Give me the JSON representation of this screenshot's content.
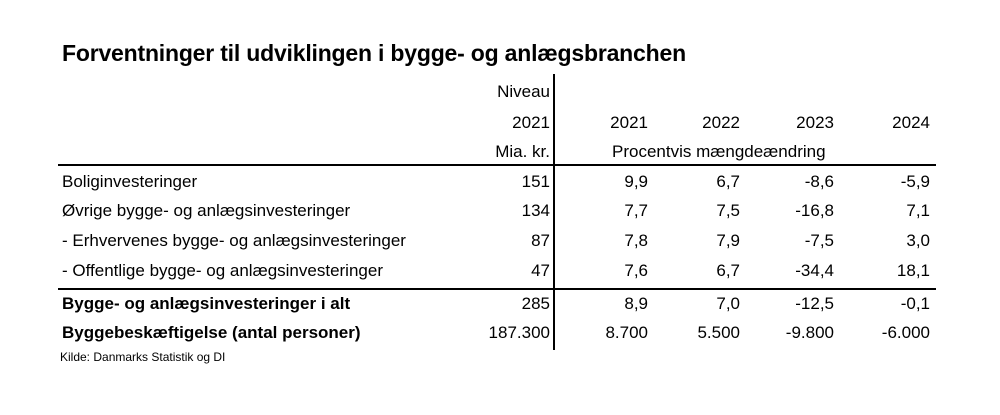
{
  "title": "Forventninger til udviklingen i bygge- og anlægsbranchen",
  "header": {
    "level_line1": "Niveau",
    "level_year": "2021",
    "level_unit": "Mia. kr.",
    "years": [
      "2021",
      "2022",
      "2023",
      "2024"
    ],
    "pct_caption": "Procentvis mængdeændring"
  },
  "rows": [
    {
      "label": "Boliginvesteringer",
      "level": "151",
      "v2021": "9,9",
      "v2022": "6,7",
      "v2023": "-8,6",
      "v2024": "-5,9"
    },
    {
      "label": "Øvrige bygge- og anlægsinvesteringer",
      "level": "134",
      "v2021": "7,7",
      "v2022": "7,5",
      "v2023": "-16,8",
      "v2024": "7,1"
    },
    {
      "label": " - Erhvervenes bygge- og anlægsinvesteringer",
      "level": "87",
      "v2021": "7,8",
      "v2022": "7,9",
      "v2023": "-7,5",
      "v2024": "3,0"
    },
    {
      "label": " - Offentlige bygge- og anlægsinvesteringer",
      "level": "47",
      "v2021": "7,6",
      "v2022": "6,7",
      "v2023": "-34,4",
      "v2024": "18,1"
    }
  ],
  "totals": [
    {
      "label": "Bygge- og anlægsinvesteringer i alt",
      "level": "285",
      "v2021": "8,9",
      "v2022": "7,0",
      "v2023": "-12,5",
      "v2024": "-0,1"
    },
    {
      "label": "Byggebeskæftigelse (antal personer)",
      "level": "187.300",
      "v2021": "8.700",
      "v2022": "5.500",
      "v2023": "-9.800",
      "v2024": "-6.000"
    }
  ],
  "source": "Kilde: Danmarks Statistik og DI"
}
